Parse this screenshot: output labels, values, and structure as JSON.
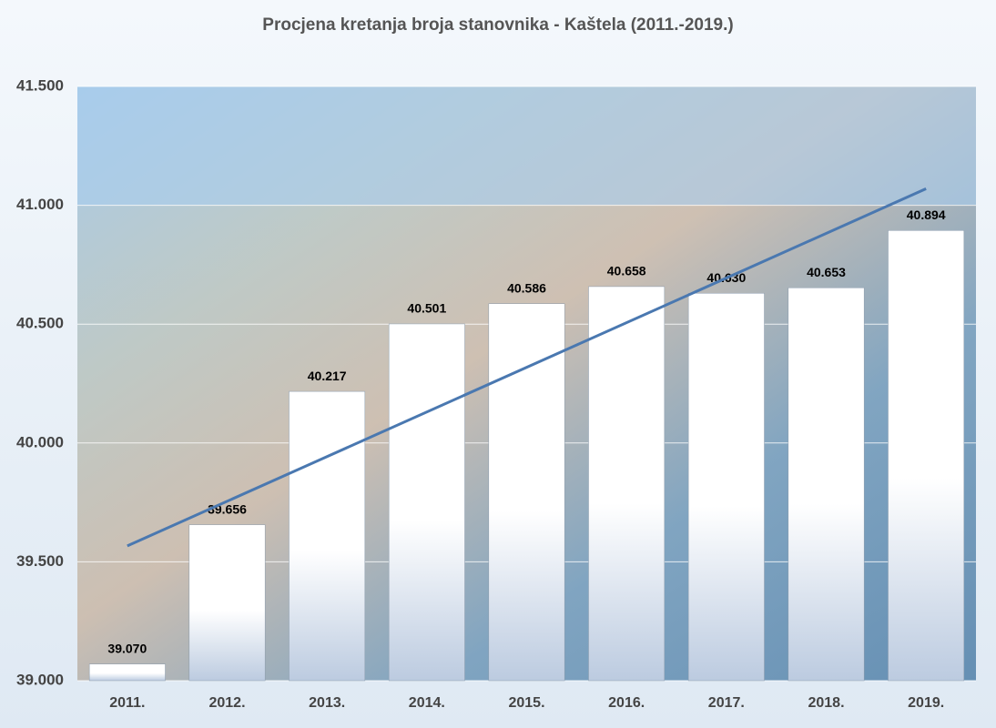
{
  "chart_data": {
    "type": "bar",
    "title": "Procjena kretanja broja stanovnika - Kaštela (2011.-2019.)",
    "categories": [
      "2011.",
      "2012.",
      "2013.",
      "2014.",
      "2015.",
      "2016.",
      "2017.",
      "2018.",
      "2019."
    ],
    "values": [
      39070,
      39656,
      40217,
      40501,
      40586,
      40658,
      40630,
      40653,
      40894
    ],
    "value_labels": [
      "39.070",
      "39.656",
      "40.217",
      "40.501",
      "40.586",
      "40.658",
      "40.630",
      "40.653",
      "40.894"
    ],
    "color": "#ffffff",
    "ylim": [
      39000,
      41500
    ],
    "yticks": [
      {
        "value": 39000,
        "label": "39.000"
      },
      {
        "value": 39500,
        "label": "39.500"
      },
      {
        "value": 40000,
        "label": "40.000"
      },
      {
        "value": 40500,
        "label": "40.500"
      },
      {
        "value": 41000,
        "label": "41.000"
      },
      {
        "value": 41500,
        "label": "41.500"
      }
    ],
    "grid": true,
    "trendline": true,
    "trendline_color": "#4a78b0"
  }
}
